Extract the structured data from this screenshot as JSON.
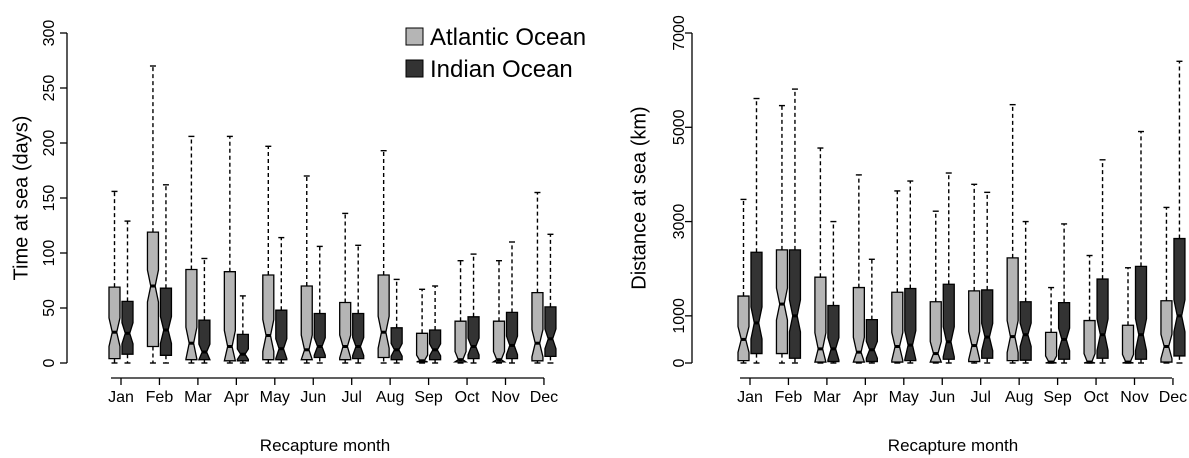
{
  "chart_data": [
    {
      "type": "boxplot",
      "ylabel": "Time at sea (days)",
      "xlabel": "Recapture month",
      "ylim": [
        0,
        300
      ],
      "yticks": [
        0,
        50,
        100,
        150,
        200,
        250,
        300
      ],
      "categories": [
        "Jan",
        "Feb",
        "Mar",
        "Apr",
        "May",
        "Jun",
        "Jul",
        "Aug",
        "Sep",
        "Oct",
        "Nov",
        "Dec"
      ],
      "notched": true,
      "whisker_style": "dashed",
      "series": [
        {
          "name": "Atlantic Ocean",
          "color": "#b5b5b5",
          "stats": [
            {
              "min": 0,
              "q1": 4,
              "median": 28,
              "q3": 69,
              "max": 156
            },
            {
              "min": 0,
              "q1": 15,
              "median": 70,
              "q3": 119,
              "max": 270
            },
            {
              "min": 0,
              "q1": 3,
              "median": 18,
              "q3": 85,
              "max": 206
            },
            {
              "min": 0,
              "q1": 2,
              "median": 15,
              "q3": 83,
              "max": 206
            },
            {
              "min": 0,
              "q1": 3,
              "median": 25,
              "q3": 80,
              "max": 197
            },
            {
              "min": 0,
              "q1": 3,
              "median": 12,
              "q3": 70,
              "max": 170
            },
            {
              "min": 0,
              "q1": 3,
              "median": 15,
              "q3": 55,
              "max": 136
            },
            {
              "min": 0,
              "q1": 5,
              "median": 28,
              "q3": 80,
              "max": 193
            },
            {
              "min": 0,
              "q1": 1,
              "median": 2,
              "q3": 27,
              "max": 67
            },
            {
              "min": 0,
              "q1": 1,
              "median": 3,
              "q3": 38,
              "max": 93
            },
            {
              "min": 0,
              "q1": 1,
              "median": 3,
              "q3": 38,
              "max": 93
            },
            {
              "min": 0,
              "q1": 2,
              "median": 18,
              "q3": 64,
              "max": 155
            }
          ]
        },
        {
          "name": "Indian Ocean",
          "color": "#333333",
          "stats": [
            {
              "min": 0,
              "q1": 8,
              "median": 27,
              "q3": 56,
              "max": 129
            },
            {
              "min": 0,
              "q1": 7,
              "median": 30,
              "q3": 68,
              "max": 162
            },
            {
              "min": 0,
              "q1": 3,
              "median": 10,
              "q3": 39,
              "max": 95
            },
            {
              "min": 0,
              "q1": 2,
              "median": 8,
              "q3": 26,
              "max": 61
            },
            {
              "min": 0,
              "q1": 3,
              "median": 13,
              "q3": 48,
              "max": 114
            },
            {
              "min": 0,
              "q1": 5,
              "median": 15,
              "q3": 45,
              "max": 106
            },
            {
              "min": 0,
              "q1": 4,
              "median": 15,
              "q3": 45,
              "max": 107
            },
            {
              "min": 0,
              "q1": 3,
              "median": 12,
              "q3": 32,
              "max": 76
            },
            {
              "min": 0,
              "q1": 3,
              "median": 12,
              "q3": 30,
              "max": 70
            },
            {
              "min": 0,
              "q1": 4,
              "median": 15,
              "q3": 42,
              "max": 99
            },
            {
              "min": 0,
              "q1": 4,
              "median": 16,
              "q3": 46,
              "max": 110
            },
            {
              "min": 0,
              "q1": 6,
              "median": 22,
              "q3": 51,
              "max": 117
            }
          ]
        }
      ],
      "legend": {
        "position": "top-right",
        "entries": [
          "Atlantic Ocean",
          "Indian Ocean"
        ]
      }
    },
    {
      "type": "boxplot",
      "ylabel": "Distance at sea (km)",
      "xlabel": "Recapture month",
      "ylim": [
        0,
        7000
      ],
      "yticks": [
        0,
        1000,
        3000,
        5000,
        7000
      ],
      "categories": [
        "Jan",
        "Feb",
        "Mar",
        "Apr",
        "May",
        "Jun",
        "Jul",
        "Aug",
        "Sep",
        "Oct",
        "Nov",
        "Dec"
      ],
      "notched": true,
      "whisker_style": "dashed",
      "series": [
        {
          "name": "Atlantic Ocean",
          "color": "#b5b5b5",
          "stats": [
            {
              "min": 0,
              "q1": 50,
              "median": 500,
              "q3": 1420,
              "max": 3470
            },
            {
              "min": 0,
              "q1": 200,
              "median": 1250,
              "q3": 2400,
              "max": 5460
            },
            {
              "min": 0,
              "q1": 20,
              "median": 300,
              "q3": 1820,
              "max": 4560
            },
            {
              "min": 0,
              "q1": 20,
              "median": 230,
              "q3": 1600,
              "max": 3990
            },
            {
              "min": 0,
              "q1": 20,
              "median": 350,
              "q3": 1500,
              "max": 3650
            },
            {
              "min": 0,
              "q1": 20,
              "median": 200,
              "q3": 1300,
              "max": 3220
            },
            {
              "min": 0,
              "q1": 30,
              "median": 370,
              "q3": 1530,
              "max": 3790
            },
            {
              "min": 0,
              "q1": 50,
              "median": 560,
              "q3": 2230,
              "max": 5480
            },
            {
              "min": 0,
              "q1": 0,
              "median": 20,
              "q3": 650,
              "max": 1600
            },
            {
              "min": 0,
              "q1": 0,
              "median": 20,
              "q3": 900,
              "max": 2280
            },
            {
              "min": 0,
              "q1": 0,
              "median": 20,
              "q3": 800,
              "max": 2020
            },
            {
              "min": 0,
              "q1": 20,
              "median": 350,
              "q3": 1320,
              "max": 3300
            }
          ]
        },
        {
          "name": "Indian Ocean",
          "color": "#333333",
          "stats": [
            {
              "min": 0,
              "q1": 200,
              "median": 850,
              "q3": 2350,
              "max": 5610
            },
            {
              "min": 0,
              "q1": 100,
              "median": 1000,
              "q3": 2400,
              "max": 5810
            },
            {
              "min": 0,
              "q1": 30,
              "median": 300,
              "q3": 1220,
              "max": 3000
            },
            {
              "min": 0,
              "q1": 30,
              "median": 280,
              "q3": 920,
              "max": 2200
            },
            {
              "min": 0,
              "q1": 50,
              "median": 380,
              "q3": 1580,
              "max": 3860
            },
            {
              "min": 0,
              "q1": 80,
              "median": 450,
              "q3": 1670,
              "max": 4030
            },
            {
              "min": 0,
              "q1": 100,
              "median": 550,
              "q3": 1550,
              "max": 3620
            },
            {
              "min": 0,
              "q1": 60,
              "median": 600,
              "q3": 1300,
              "max": 3000
            },
            {
              "min": 0,
              "q1": 80,
              "median": 500,
              "q3": 1280,
              "max": 2950
            },
            {
              "min": 0,
              "q1": 100,
              "median": 600,
              "q3": 1780,
              "max": 4310
            },
            {
              "min": 0,
              "q1": 80,
              "median": 600,
              "q3": 2050,
              "max": 4910
            },
            {
              "min": 0,
              "q1": 150,
              "median": 1000,
              "q3": 2640,
              "max": 6400
            }
          ]
        }
      ]
    }
  ]
}
